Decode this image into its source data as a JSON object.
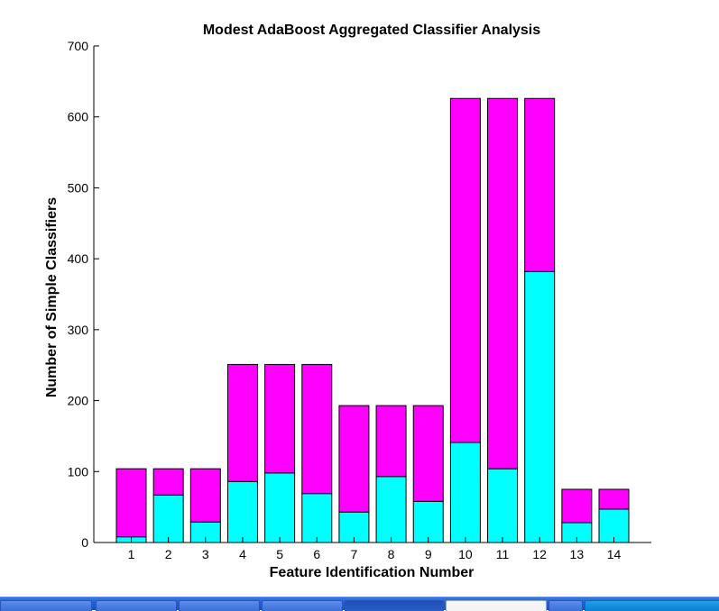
{
  "chart_data": {
    "type": "bar",
    "stacked": true,
    "title": "Modest AdaBoost Aggregated Classifier Analysis",
    "xlabel": "Feature Identification Number",
    "ylabel": "Number of Simple Classifiers",
    "ylim": [
      0,
      700
    ],
    "yticks": [
      0,
      100,
      200,
      300,
      400,
      500,
      600,
      700
    ],
    "categories": [
      "1",
      "2",
      "3",
      "4",
      "5",
      "6",
      "7",
      "8",
      "9",
      "10",
      "11",
      "12",
      "13",
      "14"
    ],
    "series": [
      {
        "values": [
          8,
          67,
          29,
          86,
          98,
          69,
          43,
          93,
          58,
          141,
          104,
          382,
          28,
          47
        ],
        "color": "#00ffff"
      },
      {
        "values": [
          96,
          37,
          75,
          165,
          153,
          182,
          150,
          100,
          135,
          485,
          522,
          244,
          47,
          28
        ],
        "color": "#ff00ff"
      }
    ],
    "grid": false,
    "legend": "none"
  }
}
